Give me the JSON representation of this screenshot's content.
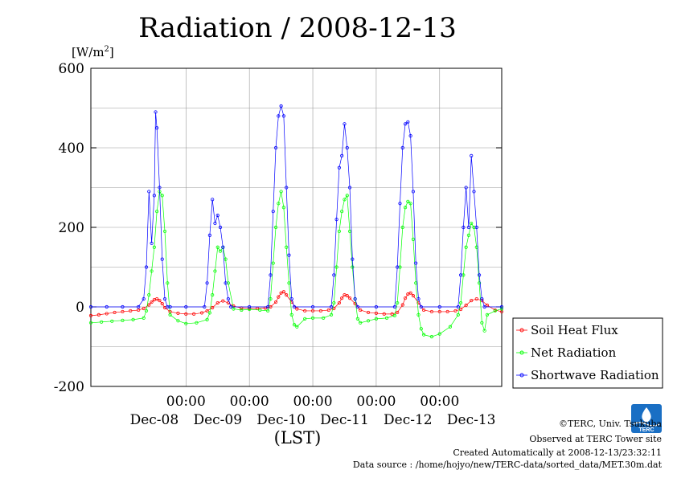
{
  "chart_data": {
    "type": "scatter",
    "title": "Radiation / 2008-12-13",
    "ylabel": "[W/m2]",
    "ylabel_base": "[W/m",
    "ylabel_sup": "2",
    "ylabel_end": "]",
    "xlabel": "(LST)",
    "ylim": [
      -200,
      600
    ],
    "yticks": [
      "600",
      "400",
      "200",
      "0",
      "-200"
    ],
    "xlim": [
      "2008-12-07T12:00",
      "2008-12-13T23:30"
    ],
    "x_time_ticks": [
      "00:00",
      "00:00",
      "00:00",
      "00:00",
      "00:00"
    ],
    "x_date_labels": [
      "Dec-08",
      "Dec-09",
      "Dec-10",
      "Dec-11",
      "Dec-12",
      "Dec-13"
    ],
    "grid": true,
    "legend_position": "right",
    "series": [
      {
        "name": "Soil Heat Flux",
        "color": "#ff0000",
        "x": [
          "2008-12-07T12:00",
          "2008-12-07T15:00",
          "2008-12-07T18:00",
          "2008-12-07T21:00",
          "2008-12-08T00:00",
          "2008-12-08T03:00",
          "2008-12-08T06:00",
          "2008-12-08T08:00",
          "2008-12-08T10:00",
          "2008-12-08T11:00",
          "2008-12-08T12:00",
          "2008-12-08T13:00",
          "2008-12-08T14:00",
          "2008-12-08T15:00",
          "2008-12-08T16:00",
          "2008-12-08T18:00",
          "2008-12-08T21:00",
          "2008-12-09T00:00",
          "2008-12-09T03:00",
          "2008-12-09T06:00",
          "2008-12-09T08:00",
          "2008-12-09T10:00",
          "2008-12-09T12:00",
          "2008-12-09T14:00",
          "2008-12-09T16:00",
          "2008-12-09T18:00",
          "2008-12-09T21:00",
          "2008-12-10T00:00",
          "2008-12-10T03:00",
          "2008-12-10T06:00",
          "2008-12-10T08:00",
          "2008-12-10T10:00",
          "2008-12-10T11:00",
          "2008-12-10T12:00",
          "2008-12-10T13:00",
          "2008-12-10T14:00",
          "2008-12-10T16:00",
          "2008-12-10T18:00",
          "2008-12-10T21:00",
          "2008-12-11T00:00",
          "2008-12-11T03:00",
          "2008-12-11T06:00",
          "2008-12-11T08:00",
          "2008-12-11T10:00",
          "2008-12-11T11:00",
          "2008-12-11T12:00",
          "2008-12-11T13:00",
          "2008-12-11T14:00",
          "2008-12-11T16:00",
          "2008-12-11T18:00",
          "2008-12-11T21:00",
          "2008-12-12T00:00",
          "2008-12-12T03:00",
          "2008-12-12T06:00",
          "2008-12-12T08:00",
          "2008-12-12T10:00",
          "2008-12-12T11:00",
          "2008-12-12T12:00",
          "2008-12-12T13:00",
          "2008-12-12T14:00",
          "2008-12-12T16:00",
          "2008-12-12T18:00",
          "2008-12-12T21:00",
          "2008-12-13T00:00",
          "2008-12-13T03:00",
          "2008-12-13T06:00",
          "2008-12-13T08:00",
          "2008-12-13T10:00",
          "2008-12-13T12:00",
          "2008-12-13T14:00",
          "2008-12-13T16:00",
          "2008-12-13T18:00",
          "2008-12-13T21:00",
          "2008-12-13T23:30"
        ],
        "values": [
          -22,
          -20,
          -17,
          -14,
          -12,
          -10,
          -8,
          -4,
          5,
          12,
          18,
          20,
          16,
          8,
          -2,
          -12,
          -16,
          -18,
          -18,
          -15,
          -10,
          -2,
          10,
          15,
          10,
          2,
          -3,
          -4,
          -4,
          -3,
          0,
          12,
          25,
          35,
          38,
          30,
          12,
          -5,
          -10,
          -10,
          -10,
          -8,
          -4,
          10,
          22,
          30,
          28,
          22,
          8,
          -8,
          -14,
          -16,
          -18,
          -18,
          -14,
          5,
          22,
          32,
          35,
          28,
          10,
          -8,
          -12,
          -12,
          -12,
          -10,
          -6,
          4,
          16,
          20,
          16,
          4,
          -8,
          -12
        ]
      },
      {
        "name": "Net Radiation",
        "color": "#00ff00",
        "x": [
          "2008-12-07T12:00",
          "2008-12-07T16:00",
          "2008-12-07T20:00",
          "2008-12-08T00:00",
          "2008-12-08T04:00",
          "2008-12-08T08:00",
          "2008-12-08T09:00",
          "2008-12-08T10:00",
          "2008-12-08T11:00",
          "2008-12-08T12:00",
          "2008-12-08T13:00",
          "2008-12-08T14:00",
          "2008-12-08T15:00",
          "2008-12-08T16:00",
          "2008-12-08T17:00",
          "2008-12-08T18:00",
          "2008-12-08T21:00",
          "2008-12-09T00:00",
          "2008-12-09T04:00",
          "2008-12-09T08:00",
          "2008-12-09T09:00",
          "2008-12-09T10:00",
          "2008-12-09T11:00",
          "2008-12-09T12:00",
          "2008-12-09T13:00",
          "2008-12-09T14:00",
          "2008-12-09T15:00",
          "2008-12-09T16:00",
          "2008-12-09T18:00",
          "2008-12-09T21:00",
          "2008-12-10T00:00",
          "2008-12-10T04:00",
          "2008-12-10T07:00",
          "2008-12-10T08:00",
          "2008-12-10T09:00",
          "2008-12-10T10:00",
          "2008-12-10T11:00",
          "2008-12-10T12:00",
          "2008-12-10T13:00",
          "2008-12-10T14:00",
          "2008-12-10T15:00",
          "2008-12-10T16:00",
          "2008-12-10T17:00",
          "2008-12-10T18:00",
          "2008-12-10T21:00",
          "2008-12-11T00:00",
          "2008-12-11T04:00",
          "2008-12-11T07:00",
          "2008-12-11T08:00",
          "2008-12-11T09:00",
          "2008-12-11T10:00",
          "2008-12-11T11:00",
          "2008-12-11T12:00",
          "2008-12-11T13:00",
          "2008-12-11T14:00",
          "2008-12-11T15:00",
          "2008-12-11T16:00",
          "2008-12-11T17:00",
          "2008-12-11T18:00",
          "2008-12-11T21:00",
          "2008-12-12T00:00",
          "2008-12-12T04:00",
          "2008-12-12T07:00",
          "2008-12-12T08:00",
          "2008-12-12T09:00",
          "2008-12-12T10:00",
          "2008-12-12T11:00",
          "2008-12-12T12:00",
          "2008-12-12T13:00",
          "2008-12-12T14:00",
          "2008-12-12T15:00",
          "2008-12-12T16:00",
          "2008-12-12T17:00",
          "2008-12-12T18:00",
          "2008-12-12T21:00",
          "2008-12-13T00:00",
          "2008-12-13T04:00",
          "2008-12-13T07:00",
          "2008-12-13T08:00",
          "2008-12-13T09:00",
          "2008-12-13T10:00",
          "2008-12-13T11:00",
          "2008-12-13T12:00",
          "2008-12-13T13:00",
          "2008-12-13T14:00",
          "2008-12-13T15:00",
          "2008-12-13T16:00",
          "2008-12-13T17:00",
          "2008-12-13T18:00",
          "2008-12-13T21:00",
          "2008-12-13T23:30"
        ],
        "values": [
          -40,
          -38,
          -36,
          -34,
          -32,
          -28,
          -10,
          30,
          90,
          150,
          240,
          290,
          280,
          190,
          60,
          -20,
          -35,
          -42,
          -40,
          -32,
          -15,
          30,
          90,
          150,
          140,
          150,
          120,
          60,
          -5,
          -8,
          -6,
          -8,
          -10,
          20,
          110,
          200,
          260,
          290,
          250,
          150,
          60,
          -20,
          -45,
          -50,
          -30,
          -28,
          -28,
          -20,
          10,
          100,
          190,
          240,
          270,
          280,
          190,
          100,
          20,
          -30,
          -40,
          -35,
          -30,
          -28,
          -22,
          10,
          100,
          200,
          250,
          265,
          260,
          170,
          60,
          -20,
          -55,
          -70,
          -75,
          -68,
          -50,
          -20,
          10,
          80,
          150,
          180,
          210,
          200,
          150,
          60,
          -40,
          -60,
          -20,
          -10,
          -5
        ]
      },
      {
        "name": "Shortwave Radiation",
        "color": "#0000ff",
        "x": [
          "2008-12-07T12:00",
          "2008-12-07T18:00",
          "2008-12-08T00:00",
          "2008-12-08T06:00",
          "2008-12-08T08:00",
          "2008-12-08T09:00",
          "2008-12-08T10:00",
          "2008-12-08T11:00",
          "2008-12-08T12:00",
          "2008-12-08T12:30",
          "2008-12-08T13:00",
          "2008-12-08T14:00",
          "2008-12-08T15:00",
          "2008-12-08T16:00",
          "2008-12-08T17:00",
          "2008-12-08T18:00",
          "2008-12-09T00:00",
          "2008-12-09T07:00",
          "2008-12-09T08:00",
          "2008-12-09T09:00",
          "2008-12-09T10:00",
          "2008-12-09T11:00",
          "2008-12-09T12:00",
          "2008-12-09T13:00",
          "2008-12-09T14:00",
          "2008-12-09T15:00",
          "2008-12-09T16:00",
          "2008-12-09T17:00",
          "2008-12-10T00:00",
          "2008-12-10T07:00",
          "2008-12-10T08:00",
          "2008-12-10T09:00",
          "2008-12-10T10:00",
          "2008-12-10T11:00",
          "2008-12-10T12:00",
          "2008-12-10T13:00",
          "2008-12-10T14:00",
          "2008-12-10T15:00",
          "2008-12-10T16:00",
          "2008-12-10T17:00",
          "2008-12-11T00:00",
          "2008-12-11T07:00",
          "2008-12-11T08:00",
          "2008-12-11T09:00",
          "2008-12-11T10:00",
          "2008-12-11T11:00",
          "2008-12-11T12:00",
          "2008-12-11T13:00",
          "2008-12-11T14:00",
          "2008-12-11T15:00",
          "2008-12-11T16:00",
          "2008-12-11T17:00",
          "2008-12-12T00:00",
          "2008-12-12T07:00",
          "2008-12-12T08:00",
          "2008-12-12T09:00",
          "2008-12-12T10:00",
          "2008-12-12T11:00",
          "2008-12-12T12:00",
          "2008-12-12T13:00",
          "2008-12-12T14:00",
          "2008-12-12T15:00",
          "2008-12-12T16:00",
          "2008-12-12T17:00",
          "2008-12-13T00:00",
          "2008-12-13T07:00",
          "2008-12-13T08:00",
          "2008-12-13T09:00",
          "2008-12-13T10:00",
          "2008-12-13T11:00",
          "2008-12-13T12:00",
          "2008-12-13T13:00",
          "2008-12-13T14:00",
          "2008-12-13T15:00",
          "2008-12-13T16:00",
          "2008-12-13T17:00",
          "2008-12-13T23:30"
        ],
        "values": [
          0,
          0,
          0,
          0,
          20,
          100,
          290,
          160,
          280,
          490,
          450,
          300,
          120,
          20,
          0,
          0,
          0,
          0,
          60,
          180,
          270,
          210,
          230,
          200,
          150,
          60,
          20,
          0,
          0,
          0,
          80,
          240,
          400,
          480,
          505,
          480,
          300,
          130,
          20,
          0,
          0,
          0,
          80,
          220,
          350,
          380,
          460,
          400,
          300,
          120,
          20,
          0,
          0,
          0,
          100,
          260,
          400,
          460,
          465,
          430,
          290,
          110,
          20,
          0,
          0,
          0,
          80,
          200,
          300,
          200,
          380,
          290,
          200,
          80,
          20,
          0,
          0
        ]
      }
    ]
  },
  "credits": {
    "copyright": "©TERC, Univ. Tsukuba",
    "observed": "Observed at TERC Tower site",
    "created": "Created Automatically at 2008-12-13/23:32:11",
    "source": "Data source : /home/hojyo/new/TERC-data/sorted_data/MET.30m.dat"
  },
  "logo": {
    "text": "TERC",
    "color": "#1a6fc4"
  }
}
